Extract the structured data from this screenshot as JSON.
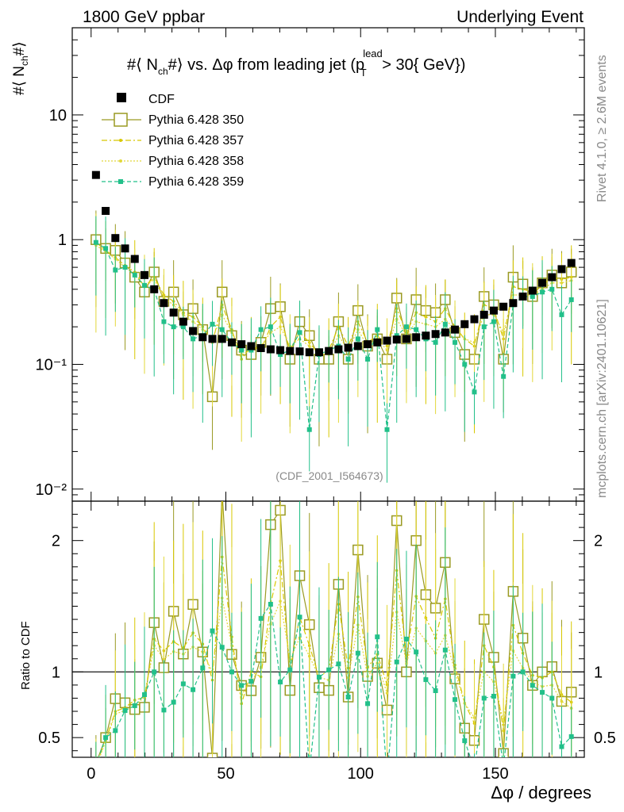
{
  "header": {
    "left": "1800 GeV ppbar",
    "right": "Underlying Event"
  },
  "side": {
    "top": "Rivet 4.1.0, ≥ 2.6M events",
    "bottom": "mcplots.cern.ch [arXiv:2401.10621]"
  },
  "chart_data": {
    "type": "scatter",
    "title": "#⟨ N_ch#⟩ vs. Δφ from leading jet (p_T^lead > 30{ GeV})",
    "title_parts": {
      "a": "#⟨ N",
      "sub1": "ch",
      "b": "#⟩ vs. Δφ from leading jet  (p",
      "sup": "lead",
      "sub2": "T",
      "c": " > 30{ GeV})"
    },
    "ylabel": "#⟨ N_ch#⟩",
    "ylabel_parts": {
      "a": "#⟨ N",
      "sub": "ch",
      "b": "#⟩"
    },
    "ratio_ylabel": "Ratio to CDF",
    "xlabel": "Δφ / degrees",
    "watermark": "(CDF_2001_I564673)",
    "xlim": [
      -7,
      183
    ],
    "ylim": [
      0.008,
      50
    ],
    "ratio_ylim": [
      0.35,
      2.3
    ],
    "x_ticks": [
      "0",
      "50",
      "100",
      "150"
    ],
    "y_ticks": [
      "10",
      "1",
      "10⁻¹",
      "10⁻²"
    ],
    "ratio_ticks": [
      "2",
      "1",
      "0.5"
    ],
    "x": [
      1.8,
      5.4,
      9,
      12.6,
      16.2,
      19.8,
      23.4,
      27,
      30.6,
      34.2,
      37.8,
      41.4,
      45,
      48.6,
      52.2,
      55.8,
      59.4,
      63,
      66.6,
      70.2,
      73.8,
      77.4,
      81,
      84.6,
      88.2,
      91.8,
      95.4,
      99,
      102.6,
      106.2,
      109.8,
      113.4,
      117,
      120.6,
      124.2,
      127.8,
      131.4,
      135,
      138.6,
      142.2,
      145.8,
      149.4,
      153,
      156.6,
      160.2,
      163.8,
      167.4,
      171,
      174.6,
      178.2
    ],
    "series": [
      {
        "name": "CDF",
        "color": "#000000",
        "values": [
          3.3,
          1.7,
          1.03,
          0.85,
          0.7,
          0.52,
          0.4,
          0.31,
          0.26,
          0.22,
          0.185,
          0.165,
          0.16,
          0.16,
          0.15,
          0.145,
          0.14,
          0.135,
          0.132,
          0.13,
          0.128,
          0.127,
          0.125,
          0.125,
          0.128,
          0.132,
          0.136,
          0.14,
          0.145,
          0.15,
          0.155,
          0.158,
          0.16,
          0.165,
          0.17,
          0.175,
          0.18,
          0.19,
          0.21,
          0.23,
          0.25,
          0.27,
          0.29,
          0.31,
          0.35,
          0.39,
          0.45,
          0.5,
          0.58,
          0.65
        ]
      },
      {
        "name": "Pythia 6.428 350",
        "color": "#9a9a22",
        "values": [
          1,
          0.85,
          0.82,
          0.65,
          0.5,
          0.38,
          0.55,
          0.32,
          0.38,
          0.25,
          0.28,
          0.19,
          0.055,
          0.38,
          0.17,
          0.13,
          0.12,
          0.15,
          0.28,
          0.29,
          0.11,
          0.22,
          0.17,
          0.11,
          0.11,
          0.22,
          0.11,
          0.27,
          0.14,
          0.16,
          0.11,
          0.34,
          0.16,
          0.33,
          0.27,
          0.26,
          0.33,
          0.18,
          0.12,
          0.11,
          0.35,
          0.3,
          0.11,
          0.5,
          0.44,
          0.35,
          0.45,
          0.52,
          0.45,
          0.55
        ]
      },
      {
        "name": "Pythia 6.428 357",
        "color": "#d8c800",
        "values": [
          0.95,
          0.82,
          0.72,
          0.62,
          0.55,
          0.42,
          0.5,
          0.36,
          0.32,
          0.26,
          0.24,
          0.2,
          0.15,
          0.3,
          0.19,
          0.11,
          0.14,
          0.13,
          0.2,
          0.24,
          0.13,
          0.18,
          0.15,
          0.12,
          0.13,
          0.2,
          0.14,
          0.22,
          0.15,
          0.17,
          0.14,
          0.28,
          0.18,
          0.26,
          0.24,
          0.22,
          0.28,
          0.2,
          0.16,
          0.14,
          0.3,
          0.28,
          0.16,
          0.42,
          0.4,
          0.38,
          0.43,
          0.5,
          0.48,
          0.5
        ]
      },
      {
        "name": "Pythia 6.428 358",
        "color": "#e2d83a",
        "values": [
          0.9,
          0.8,
          0.7,
          0.6,
          0.52,
          0.42,
          0.48,
          0.34,
          0.3,
          0.25,
          0.22,
          0.19,
          0.16,
          0.25,
          0.18,
          0.12,
          0.13,
          0.14,
          0.18,
          0.2,
          0.14,
          0.16,
          0.14,
          0.12,
          0.12,
          0.17,
          0.13,
          0.19,
          0.14,
          0.16,
          0.13,
          0.23,
          0.17,
          0.22,
          0.21,
          0.2,
          0.23,
          0.19,
          0.16,
          0.15,
          0.25,
          0.25,
          0.18,
          0.36,
          0.36,
          0.36,
          0.4,
          0.45,
          0.45,
          0.47
        ]
      },
      {
        "name": "Pythia 6.428 359",
        "color": "#22c08a",
        "values": [
          0.95,
          0.85,
          0.57,
          0.6,
          0.52,
          0.43,
          0.4,
          0.22,
          0.2,
          0.2,
          0.16,
          0.17,
          0.21,
          0.19,
          0.15,
          0.13,
          0.13,
          0.19,
          0.2,
          0.12,
          0.13,
          0.18,
          0.03,
          0.12,
          0.13,
          0.14,
          0.11,
          0.16,
          0.11,
          0.19,
          0.03,
          0.17,
          0.2,
          0.19,
          0.16,
          0.15,
          0.21,
          0.15,
          0.1,
          0.06,
          0.2,
          0.22,
          0.08,
          0.3,
          0.35,
          0.35,
          0.38,
          0.4,
          0.25,
          0.33
        ]
      }
    ]
  }
}
